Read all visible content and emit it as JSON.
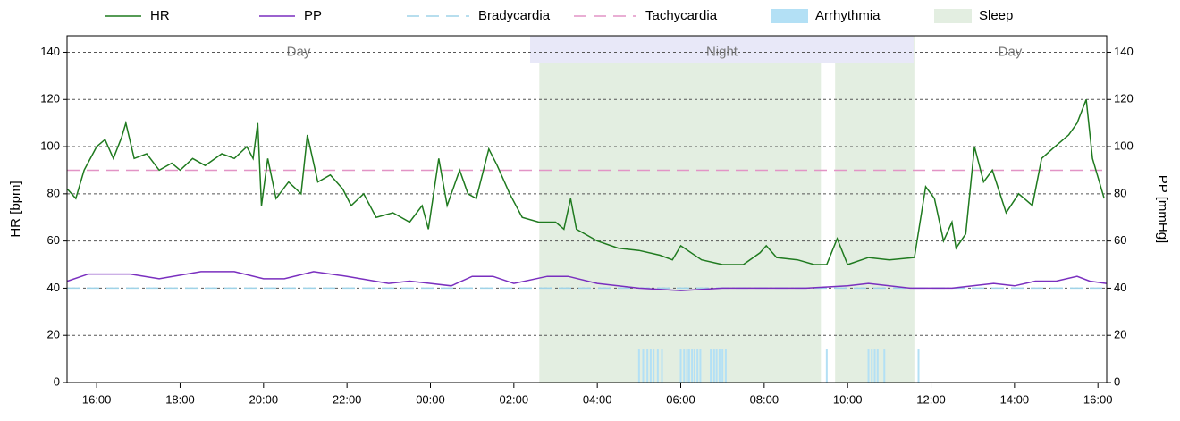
{
  "chart_data": {
    "type": "line",
    "ylabel": "HR [bpm]",
    "y2label": "PP [mmHg]",
    "xlim": [
      15.29,
      40.21
    ],
    "xticks": [
      {
        "value": 16,
        "label": "16:00"
      },
      {
        "value": 18,
        "label": "18:00"
      },
      {
        "value": 20,
        "label": "20:00"
      },
      {
        "value": 22,
        "label": "22:00"
      },
      {
        "value": 24,
        "label": "00:00"
      },
      {
        "value": 26,
        "label": "02:00"
      },
      {
        "value": 28,
        "label": "04:00"
      },
      {
        "value": 30,
        "label": "06:00"
      },
      {
        "value": 32,
        "label": "08:00"
      },
      {
        "value": 34,
        "label": "10:00"
      },
      {
        "value": 36,
        "label": "12:00"
      },
      {
        "value": 38,
        "label": "14:00"
      },
      {
        "value": 40,
        "label": "16:00"
      }
    ],
    "ylim": [
      0,
      147
    ],
    "yticks": [
      0,
      20,
      40,
      60,
      80,
      100,
      120,
      140
    ],
    "y2lim": [
      0,
      147
    ],
    "y2ticks": [
      0,
      20,
      40,
      60,
      80,
      100,
      120,
      140
    ],
    "grid": true,
    "periods": [
      {
        "label": "Day",
        "start": 15.29,
        "end": 26.39
      },
      {
        "label": "Night",
        "start": 26.39,
        "end": 35.58
      },
      {
        "label": "Day",
        "start": 35.58,
        "end": 40.21
      }
    ],
    "sleep": {
      "name": "Sleep",
      "color": "#e3eee1",
      "ranges": [
        [
          26.61,
          33.36
        ],
        [
          33.7,
          35.6
        ]
      ]
    },
    "thresholds": [
      {
        "name": "Bradycardia",
        "value": 40,
        "color": "#9fd3e8"
      },
      {
        "name": "Tachycardia",
        "value": 90,
        "color": "#e294c6"
      }
    ],
    "arrhythmia": {
      "name": "Arrhythmia",
      "color": "#b3e0f5",
      "height": 14,
      "x": [
        29.0,
        29.1,
        29.2,
        29.28,
        29.35,
        29.45,
        29.55,
        30.0,
        30.08,
        30.15,
        30.2,
        30.27,
        30.33,
        30.4,
        30.47,
        30.72,
        30.8,
        30.86,
        30.93,
        31.0,
        31.08,
        33.5,
        34.5,
        34.58,
        34.65,
        34.72,
        34.88,
        35.7
      ]
    },
    "series": [
      {
        "name": "HR",
        "color": "#1f7a1f",
        "x": [
          15.3,
          15.5,
          15.7,
          16.0,
          16.2,
          16.4,
          16.6,
          16.7,
          16.9,
          17.2,
          17.5,
          17.8,
          18.0,
          18.3,
          18.6,
          19.0,
          19.3,
          19.6,
          19.75,
          19.86,
          19.95,
          20.1,
          20.3,
          20.6,
          20.9,
          21.05,
          21.3,
          21.6,
          21.9,
          22.1,
          22.4,
          22.7,
          23.1,
          23.5,
          23.8,
          23.95,
          24.2,
          24.4,
          24.7,
          24.9,
          25.1,
          25.4,
          25.6,
          25.9,
          26.2,
          26.6,
          27.0,
          27.2,
          27.36,
          27.5,
          28.0,
          28.5,
          29.0,
          29.5,
          29.8,
          30.0,
          30.5,
          31.0,
          31.5,
          31.9,
          32.05,
          32.3,
          32.8,
          33.2,
          33.5,
          33.75,
          34.0,
          34.5,
          35.0,
          35.6,
          35.87,
          36.08,
          36.3,
          36.5,
          36.6,
          36.83,
          37.04,
          37.26,
          37.47,
          37.8,
          38.1,
          38.43,
          38.65,
          38.97,
          39.3,
          39.5,
          39.72,
          39.87,
          40.15
        ],
        "values": [
          82,
          78,
          90,
          100,
          103,
          95,
          104,
          110,
          95,
          97,
          90,
          93,
          90,
          95,
          92,
          97,
          95,
          100,
          95,
          110,
          75,
          95,
          78,
          85,
          80,
          105,
          85,
          88,
          82,
          75,
          80,
          70,
          72,
          68,
          75,
          65,
          95,
          75,
          90,
          80,
          78,
          99,
          92,
          80,
          70,
          68,
          68,
          65,
          78,
          65,
          60,
          57,
          56,
          54,
          52,
          58,
          52,
          50,
          50,
          55,
          58,
          53,
          52,
          50,
          50,
          61,
          50,
          53,
          52,
          53,
          83,
          78,
          60,
          68,
          57,
          63,
          100,
          85,
          90,
          72,
          80,
          75,
          95,
          100,
          105,
          110,
          120,
          95,
          78
        ]
      },
      {
        "name": "PP",
        "color": "#7a2fbf",
        "axis": "y2",
        "x": [
          15.3,
          15.8,
          16.8,
          17.5,
          18.5,
          19.3,
          20.0,
          20.5,
          21.2,
          22.0,
          23.0,
          23.5,
          24.0,
          24.5,
          25.0,
          25.5,
          26.0,
          26.8,
          27.3,
          28.0,
          29.0,
          30.0,
          31.0,
          32.0,
          33.0,
          34.0,
          34.5,
          35.5,
          36.5,
          37.5,
          38.0,
          38.5,
          39.0,
          39.5,
          39.8,
          40.2
        ],
        "values": [
          43,
          46,
          46,
          44,
          47,
          47,
          44,
          44,
          47,
          45,
          42,
          43,
          42,
          41,
          45,
          45,
          42,
          45,
          45,
          42,
          40,
          39,
          40,
          40,
          40,
          41,
          42,
          40,
          40,
          42,
          41,
          43,
          43,
          45,
          43,
          42
        ]
      }
    ],
    "legend": "top"
  }
}
